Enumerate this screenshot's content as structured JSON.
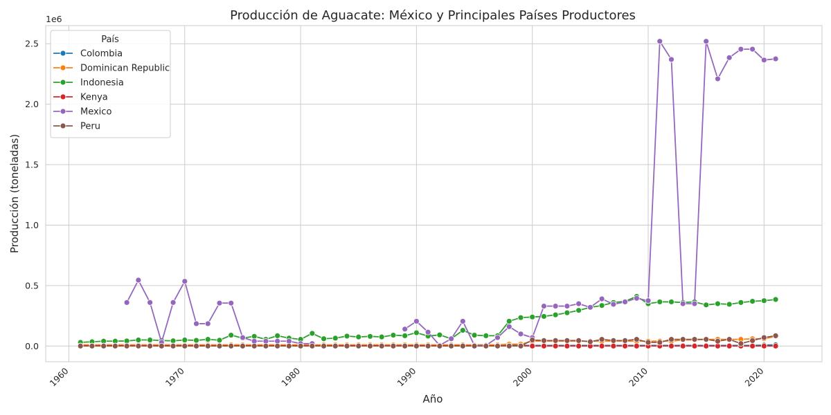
{
  "chart_data": {
    "type": "line",
    "title": "Producción de Aguacate: México y Principales Países Productores",
    "xlabel": "Año",
    "ylabel": "Producción (toneladas)",
    "y_offset_label": "1e6",
    "xlim": [
      1958,
      2025
    ],
    "ylim": [
      -130000,
      2650000
    ],
    "x_ticks": [
      1960,
      1970,
      1980,
      1990,
      2000,
      2010,
      2020
    ],
    "y_ticks": [
      0.0,
      0.5,
      1.0,
      1.5,
      2.0,
      2.5
    ],
    "y_tick_scale": 1000000,
    "grid": true,
    "legend_title": "País",
    "legend_position": "top-left",
    "x": [
      1961,
      1962,
      1963,
      1964,
      1965,
      1966,
      1967,
      1968,
      1969,
      1970,
      1971,
      1972,
      1973,
      1974,
      1975,
      1976,
      1977,
      1978,
      1979,
      1980,
      1981,
      1982,
      1983,
      1984,
      1985,
      1986,
      1987,
      1988,
      1989,
      1990,
      1991,
      1992,
      1993,
      1994,
      1995,
      1996,
      1997,
      1998,
      1999,
      2000,
      2001,
      2002,
      2003,
      2004,
      2005,
      2006,
      2007,
      2008,
      2009,
      2010,
      2011,
      2012,
      2013,
      2014,
      2015,
      2016,
      2017,
      2018,
      2019,
      2020,
      2021
    ],
    "series": [
      {
        "name": "Colombia",
        "color": "#1f77b4",
        "values": [
          5000,
          5000,
          5000,
          5000,
          5000,
          5000,
          5000,
          5000,
          5000,
          5000,
          5000,
          5000,
          5000,
          5000,
          5000,
          5000,
          5000,
          5000,
          5000,
          5000,
          5000,
          5000,
          5000,
          5000,
          5000,
          5000,
          5000,
          5000,
          5000,
          5000,
          5000,
          5000,
          5000,
          5000,
          5000,
          5000,
          5000,
          5000,
          5000,
          5000,
          5000,
          5000,
          5000,
          5000,
          5000,
          5000,
          5000,
          5000,
          5000,
          5000,
          5000,
          5000,
          5000,
          5000,
          5000,
          5000,
          5000,
          5000,
          5000,
          8000,
          10000
        ]
      },
      {
        "name": "Dominican Republic",
        "color": "#ff7f0e",
        "values": [
          10000,
          10000,
          10000,
          10000,
          10000,
          10000,
          10000,
          10000,
          10000,
          10000,
          10000,
          10000,
          10000,
          10000,
          10000,
          10000,
          10000,
          10000,
          10000,
          10000,
          10000,
          10000,
          10000,
          10000,
          10000,
          10000,
          10000,
          10000,
          10000,
          10000,
          10000,
          10000,
          10000,
          10000,
          10000,
          10000,
          10000,
          15000,
          15000,
          40000,
          40000,
          40000,
          40000,
          40000,
          40000,
          40000,
          40000,
          40000,
          40000,
          40000,
          40000,
          40000,
          50000,
          50000,
          55000,
          55000,
          55000,
          55000,
          60000,
          60000,
          80000
        ]
      },
      {
        "name": "Indonesia",
        "color": "#2ca02c",
        "values": [
          30000,
          35000,
          40000,
          40000,
          42000,
          50000,
          50000,
          45000,
          43000,
          50000,
          47000,
          55000,
          48000,
          90000,
          65000,
          80000,
          55000,
          85000,
          65000,
          55000,
          105000,
          60000,
          65000,
          82000,
          75000,
          80000,
          75000,
          90000,
          85000,
          110000,
          82000,
          92000,
          60000,
          130000,
          90000,
          85000,
          85000,
          205000,
          235000,
          240000,
          245000,
          258000,
          275000,
          295000,
          320000,
          335000,
          360000,
          370000,
          410000,
          350000,
          365000,
          365000,
          360000,
          365000,
          340000,
          350000,
          345000,
          360000,
          370000,
          375000,
          385000
        ]
      },
      {
        "name": "Kenya",
        "color": "#d62728",
        "values": [
          2000,
          2000,
          2000,
          2000,
          2000,
          2000,
          2000,
          2000,
          2000,
          2000,
          2000,
          2000,
          2000,
          2000,
          2000,
          2000,
          2000,
          2000,
          2000,
          2000,
          2000,
          2000,
          2000,
          2000,
          2000,
          2000,
          2000,
          2000,
          2000,
          2000,
          2000,
          2000,
          2000,
          2000,
          2000,
          2000,
          2000,
          2000,
          2000,
          0,
          0,
          0,
          0,
          0,
          0,
          0,
          0,
          0,
          0,
          0,
          0,
          0,
          0,
          0,
          0,
          0,
          0,
          0,
          0,
          0,
          0
        ]
      },
      {
        "name": "Mexico",
        "color": "#9467bd",
        "values": [
          null,
          null,
          null,
          null,
          360000,
          545000,
          360000,
          30000,
          360000,
          535000,
          185000,
          185000,
          355000,
          355000,
          70000,
          40000,
          40000,
          40000,
          40000,
          20000,
          20000,
          null,
          null,
          null,
          null,
          null,
          null,
          null,
          140000,
          205000,
          115000,
          5000,
          60000,
          205000,
          5000,
          5000,
          70000,
          160000,
          100000,
          70000,
          330000,
          330000,
          330000,
          350000,
          320000,
          390000,
          345000,
          365000,
          395000,
          375000,
          2520000,
          2370000,
          350000,
          350000,
          2520000,
          2210000,
          2385000,
          2455000,
          2455000,
          2365000,
          2375000
        ]
      },
      {
        "name": "Peru",
        "color": "#8c564b",
        "values": [
          0,
          0,
          0,
          0,
          0,
          0,
          0,
          0,
          0,
          0,
          0,
          0,
          0,
          0,
          0,
          0,
          0,
          0,
          0,
          0,
          0,
          0,
          0,
          0,
          0,
          0,
          0,
          0,
          0,
          0,
          0,
          0,
          0,
          0,
          0,
          0,
          0,
          0,
          0,
          50000,
          45000,
          45000,
          45000,
          45000,
          35000,
          55000,
          45000,
          45000,
          55000,
          30000,
          30000,
          55000,
          55000,
          55000,
          55000,
          40000,
          55000,
          20000,
          45000,
          70000,
          85000
        ]
      }
    ]
  }
}
